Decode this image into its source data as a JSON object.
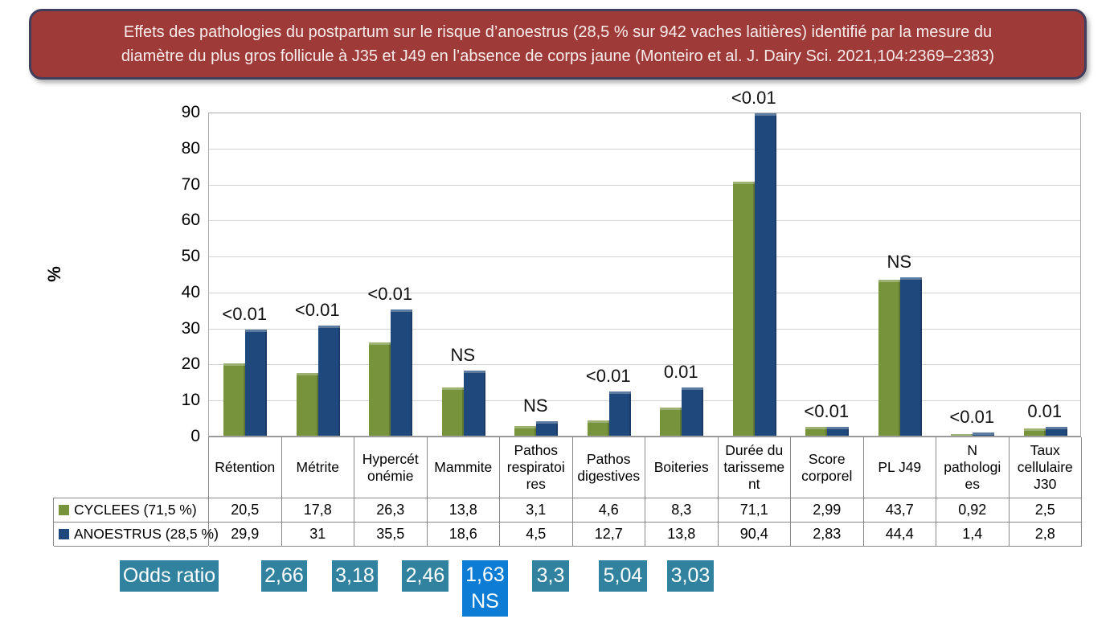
{
  "title": {
    "line1": "Effets des pathologies du postpartum sur le risque d’anoestrus (28,5 % sur 942 vaches laitières) identifié par la mesure du",
    "line2": "diamètre du plus gros follicule à J35 et J49 en l’absence de corps jaune (Monteiro et al. J. Dairy Sci. 2021,104:2369–2383)"
  },
  "chart_data": {
    "type": "bar",
    "title": "Effets des pathologies du postpartum sur le risque d’anoestrus (28,5 % sur 942 vaches laitières) identifié par la mesure du diamètre du plus gros follicule à J35 et J49 en l’absence de corps jaune (Monteiro et al. J. Dairy Sci. 2021,104:2369–2383)",
    "xlabel": "",
    "ylabel": "%",
    "ylim": [
      0,
      90
    ],
    "ytick_step": 10,
    "grid": true,
    "legend_position": "table-left",
    "categories": [
      "Rétention",
      "Métrite",
      "Hypercétonémie",
      "Mammite",
      "Pathos respiratoires",
      "Pathos digestives",
      "Boiteries",
      "Durée du tarissement",
      "Score corporel",
      "PL J49",
      "N pathologies",
      "Taux cellulaire J30"
    ],
    "category_lines": [
      [
        "Rétention"
      ],
      [
        "Métrite"
      ],
      [
        "Hypercét",
        "onémie"
      ],
      [
        "Mammite"
      ],
      [
        "Pathos",
        "respiratoi",
        "res"
      ],
      [
        "Pathos",
        "digestives"
      ],
      [
        "Boiteries"
      ],
      [
        "Durée du",
        "tarisseme",
        "nt"
      ],
      [
        "Score",
        "corporel"
      ],
      [
        "PL J49"
      ],
      [
        "N",
        "pathologi",
        "es"
      ],
      [
        "Taux",
        "cellulaire",
        "J30"
      ]
    ],
    "series": [
      {
        "name": "CYCLEES (71,5 %)",
        "color": "#77933C",
        "values": [
          20.5,
          17.8,
          26.3,
          13.8,
          3.1,
          4.6,
          8.3,
          71.1,
          2.99,
          43.7,
          0.92,
          2.5
        ],
        "display": [
          "20,5",
          "17,8",
          "26,3",
          "13,8",
          "3,1",
          "4,6",
          "8,3",
          "71,1",
          "2,99",
          "43,7",
          "0,92",
          "2,5"
        ]
      },
      {
        "name": "ANOESTRUS (28,5 %)",
        "color": "#1F497D",
        "values": [
          29.9,
          31,
          35.5,
          18.6,
          4.5,
          12.7,
          13.8,
          90.4,
          2.83,
          44.4,
          1.4,
          2.8
        ],
        "display": [
          "29,9",
          "31",
          "35,5",
          "18,6",
          "4,5",
          "12,7",
          "13,8",
          "90,4",
          "2,83",
          "44,4",
          "1,4",
          "2,8"
        ]
      }
    ],
    "significance": [
      "<0.01",
      "<0.01",
      "<0.01",
      "NS",
      "NS",
      "<0.01",
      "0.01",
      "<0.01",
      "<0.01",
      "NS",
      "<0.01",
      "0.01"
    ]
  },
  "odds_ratio": {
    "label": "Odds ratio",
    "boxes": [
      {
        "text": "2,66",
        "highlight": false
      },
      {
        "text": "3,18",
        "highlight": false
      },
      {
        "text": "2,46",
        "highlight": false
      },
      {
        "text": "1,63",
        "note": "NS",
        "highlight": true
      },
      {
        "text": "3,3",
        "highlight": false
      },
      {
        "text": "5,04",
        "highlight": false
      },
      {
        "text": "3,03",
        "highlight": false
      }
    ]
  },
  "colors": {
    "banner_bg": "#9E3B39",
    "banner_border": "#413D5C",
    "banner_text": "#F7ECEC",
    "cyclees_green": "#77933C",
    "anoestrus_blue": "#1F497D",
    "odds_teal": "#31829F",
    "odds_highlight_blue": "#0C7CD5",
    "gridline": "#D3D3D3",
    "table_border": "#898989"
  }
}
